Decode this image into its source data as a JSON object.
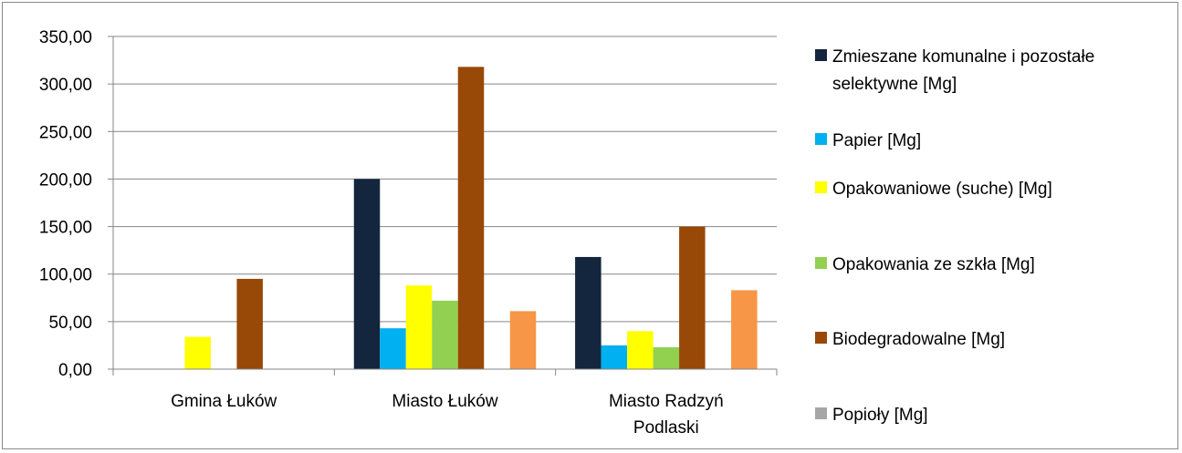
{
  "chart_data": {
    "type": "bar",
    "title": "",
    "xlabel": "",
    "ylabel": "",
    "ylim": [
      0,
      350
    ],
    "yticks": [
      "0,00",
      "50,00",
      "100,00",
      "150,00",
      "200,00",
      "250,00",
      "300,00",
      "350,00"
    ],
    "grid": true,
    "legend_position": "right",
    "categories": [
      {
        "lines": [
          "Gmina Łuków"
        ]
      },
      {
        "lines": [
          "Miasto Łuków"
        ]
      },
      {
        "lines": [
          "Miasto Radzyń",
          "Podlaski"
        ]
      }
    ],
    "series": [
      {
        "name_lines": [
          "Zmieszane komunalne i pozostałe",
          "selektywne [Mg]"
        ],
        "color": "#14263e",
        "values": [
          0,
          200,
          118
        ]
      },
      {
        "name_lines": [
          "Papier [Mg]"
        ],
        "color": "#00b0f0",
        "values": [
          0,
          43,
          25
        ]
      },
      {
        "name_lines": [
          "Opakowaniowe (suche) [Mg]"
        ],
        "color": "#ffff00",
        "values": [
          34,
          88,
          40
        ]
      },
      {
        "name_lines": [
          "Opakowania ze szkła [Mg]"
        ],
        "color": "#92d050",
        "values": [
          0,
          72,
          23
        ]
      },
      {
        "name_lines": [
          "Biodegradowalne [Mg]"
        ],
        "color": "#984807",
        "values": [
          95,
          318,
          150
        ]
      },
      {
        "name_lines": [
          "Popioły [Mg]"
        ],
        "color": "#a6a6a6",
        "values": [
          0,
          0,
          0
        ]
      },
      {
        "name_lines": [
          ""
        ],
        "color": "#f79646",
        "values": [
          0,
          61,
          83
        ]
      }
    ]
  }
}
